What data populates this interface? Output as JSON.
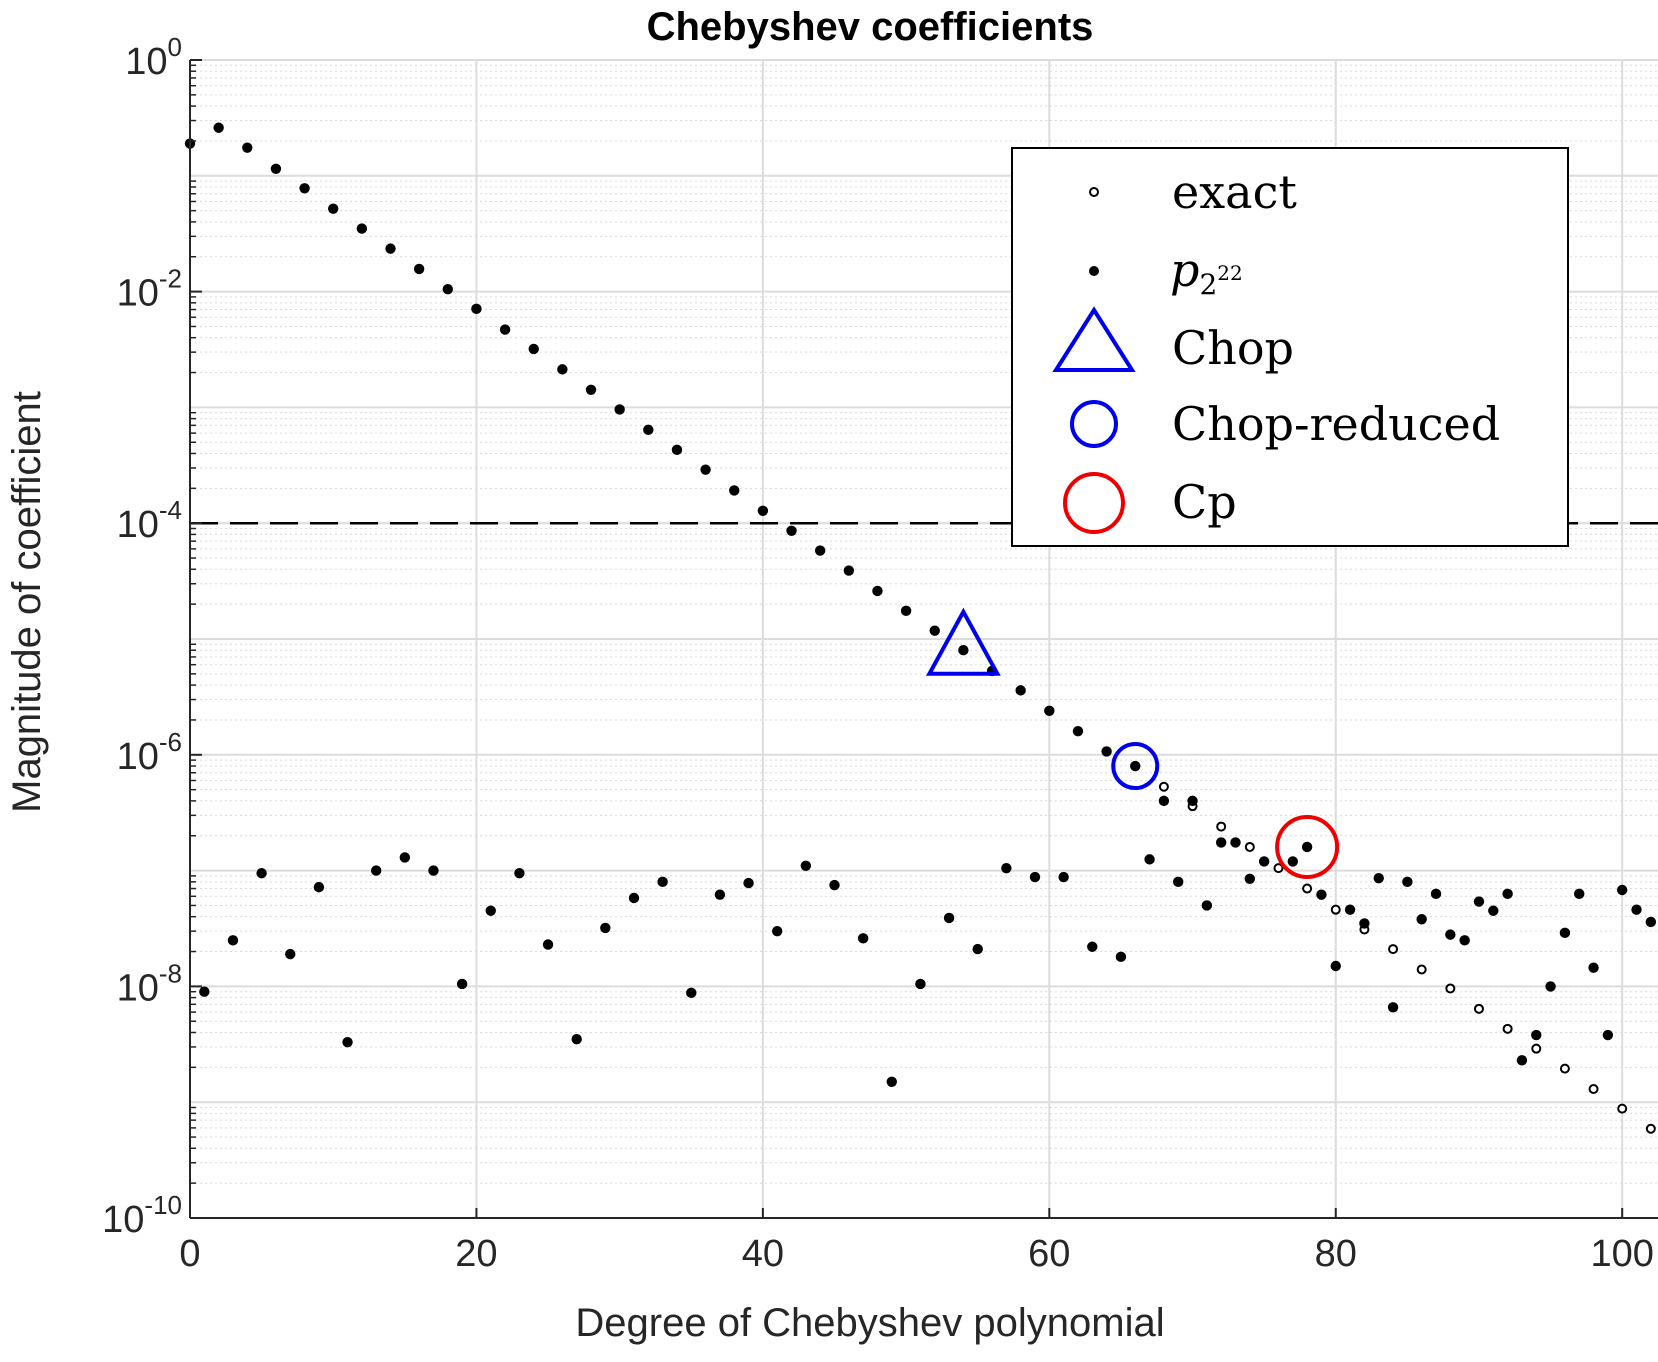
{
  "chart_data": {
    "type": "scatter",
    "title": "Chebyshev coefficients",
    "xlabel": "Degree of Chebyshev polynomial",
    "ylabel": "Magnitude of coefficient",
    "xlim": [
      0,
      102.5
    ],
    "ylim": [
      1e-10,
      1
    ],
    "yscale": "log",
    "grid": true,
    "minor_grid": true,
    "xticks": [
      0,
      20,
      40,
      60,
      80,
      100
    ],
    "yticks": [
      {
        "value": 1,
        "base": "10",
        "exp": "0"
      },
      {
        "value": 0.01,
        "base": "10",
        "exp": "-2"
      },
      {
        "value": 0.0001,
        "base": "10",
        "exp": "-4"
      },
      {
        "value": 1e-06,
        "base": "10",
        "exp": "-6"
      },
      {
        "value": 1e-08,
        "base": "10",
        "exp": "-8"
      },
      {
        "value": 1e-10,
        "base": "10",
        "exp": "-10"
      }
    ],
    "threshold_line": {
      "y": 0.0001,
      "style": "dashed",
      "color": "#000000"
    },
    "legend": {
      "placement": "top-right",
      "entries": [
        {
          "label": "exact",
          "marker": "open-dot"
        },
        {
          "label_base": "p",
          "label_sub": "2",
          "label_sup": "22",
          "marker": "dot"
        },
        {
          "label": "Chop",
          "marker": "triangle",
          "color": "#0000ee"
        },
        {
          "label": "Chop-reduced",
          "marker": "circle",
          "color": "#0000ee"
        },
        {
          "label": "Cp",
          "marker": "circle",
          "color": "#ee0000"
        }
      ]
    },
    "series": [
      {
        "name": "exact",
        "marker": "open-dot",
        "points": [
          [
            66,
            8e-07
          ],
          [
            68,
            5.3e-07
          ],
          [
            70,
            3.6e-07
          ],
          [
            72,
            2.4e-07
          ],
          [
            74,
            1.6e-07
          ],
          [
            76,
            1.05e-07
          ],
          [
            78,
            7e-08
          ],
          [
            80,
            4.6e-08
          ],
          [
            82,
            3.1e-08
          ],
          [
            84,
            2.1e-08
          ],
          [
            86,
            1.4e-08
          ],
          [
            88,
            9.6e-09
          ],
          [
            90,
            6.4e-09
          ],
          [
            92,
            4.3e-09
          ],
          [
            94,
            2.9e-09
          ],
          [
            96,
            1.95e-09
          ],
          [
            98,
            1.3e-09
          ],
          [
            100,
            8.8e-10
          ],
          [
            102,
            5.9e-10
          ]
        ]
      },
      {
        "name": "p_2^22",
        "marker": "dot",
        "points": [
          [
            0,
            0.19
          ],
          [
            2,
            0.26
          ],
          [
            4,
            0.175
          ],
          [
            6,
            0.115
          ],
          [
            8,
            0.078
          ],
          [
            10,
            0.052
          ],
          [
            12,
            0.035
          ],
          [
            14,
            0.0235
          ],
          [
            16,
            0.0157
          ],
          [
            18,
            0.0105
          ],
          [
            20,
            0.0071
          ],
          [
            22,
            0.0047
          ],
          [
            24,
            0.0032
          ],
          [
            26,
            0.00213
          ],
          [
            28,
            0.00142
          ],
          [
            30,
            0.00096
          ],
          [
            32,
            0.00064
          ],
          [
            34,
            0.00043
          ],
          [
            36,
            0.00029
          ],
          [
            38,
            0.000192
          ],
          [
            40,
            0.000128
          ],
          [
            42,
            8.6e-05
          ],
          [
            44,
            5.8e-05
          ],
          [
            46,
            3.9e-05
          ],
          [
            48,
            2.6e-05
          ],
          [
            50,
            1.75e-05
          ],
          [
            52,
            1.18e-05
          ],
          [
            54,
            8e-06
          ],
          [
            56,
            5.3e-06
          ],
          [
            58,
            3.6e-06
          ],
          [
            60,
            2.4e-06
          ],
          [
            62,
            1.6e-06
          ],
          [
            64,
            1.07e-06
          ],
          [
            66,
            8e-07
          ],
          [
            68,
            4e-07
          ],
          [
            70,
            4e-07
          ],
          [
            72,
            1.75e-07
          ],
          [
            73,
            1.75e-07
          ],
          [
            75,
            1.2e-07
          ],
          [
            77,
            1.2e-07
          ],
          [
            78,
            1.6e-07
          ],
          [
            1,
            9e-09
          ],
          [
            3,
            2.5e-08
          ],
          [
            5,
            9.5e-08
          ],
          [
            7,
            1.9e-08
          ],
          [
            9,
            7.2e-08
          ],
          [
            11,
            3.3e-09
          ],
          [
            13,
            1e-07
          ],
          [
            15,
            1.3e-07
          ],
          [
            17,
            1e-07
          ],
          [
            19,
            1.05e-08
          ],
          [
            21,
            4.5e-08
          ],
          [
            23,
            9.5e-08
          ],
          [
            25,
            2.3e-08
          ],
          [
            27,
            3.5e-09
          ],
          [
            29,
            3.2e-08
          ],
          [
            31,
            5.8e-08
          ],
          [
            33,
            8e-08
          ],
          [
            35,
            8.8e-09
          ],
          [
            37,
            6.2e-08
          ],
          [
            39,
            7.8e-08
          ],
          [
            41,
            3e-08
          ],
          [
            43,
            1.1e-07
          ],
          [
            45,
            7.5e-08
          ],
          [
            47,
            2.6e-08
          ],
          [
            49,
            1.5e-09
          ],
          [
            51,
            1.05e-08
          ],
          [
            53,
            3.9e-08
          ],
          [
            55,
            2.1e-08
          ],
          [
            57,
            1.05e-07
          ],
          [
            59,
            8.8e-08
          ],
          [
            61,
            8.8e-08
          ],
          [
            63,
            2.2e-08
          ],
          [
            65,
            1.8e-08
          ],
          [
            67,
            1.25e-07
          ],
          [
            69,
            8e-08
          ],
          [
            71,
            5e-08
          ],
          [
            74,
            8.5e-08
          ],
          [
            79,
            6.2e-08
          ],
          [
            80,
            1.5e-08
          ],
          [
            81,
            4.6e-08
          ],
          [
            82,
            3.5e-08
          ],
          [
            83,
            8.6e-08
          ],
          [
            84,
            6.6e-09
          ],
          [
            85,
            8e-08
          ],
          [
            86,
            3.8e-08
          ],
          [
            87,
            6.3e-08
          ],
          [
            88,
            2.8e-08
          ],
          [
            89,
            2.5e-08
          ],
          [
            90,
            5.4e-08
          ],
          [
            91,
            4.5e-08
          ],
          [
            92,
            6.3e-08
          ],
          [
            93,
            2.3e-09
          ],
          [
            94,
            3.8e-09
          ],
          [
            95,
            1e-08
          ],
          [
            96,
            2.9e-08
          ],
          [
            97,
            6.3e-08
          ],
          [
            98,
            1.45e-08
          ],
          [
            99,
            3.8e-09
          ],
          [
            100,
            6.8e-08
          ],
          [
            101,
            4.6e-08
          ],
          [
            102,
            3.6e-08
          ]
        ]
      },
      {
        "name": "Chop",
        "marker": "triangle",
        "color": "#0000ee",
        "points": [
          [
            54,
            8e-06
          ]
        ]
      },
      {
        "name": "Chop-reduced",
        "marker": "circle",
        "color": "#0000ee",
        "points": [
          [
            66,
            8e-07
          ]
        ]
      },
      {
        "name": "Cp",
        "marker": "circle",
        "color": "#ee0000",
        "points": [
          [
            78,
            1.6e-07
          ]
        ]
      }
    ]
  }
}
